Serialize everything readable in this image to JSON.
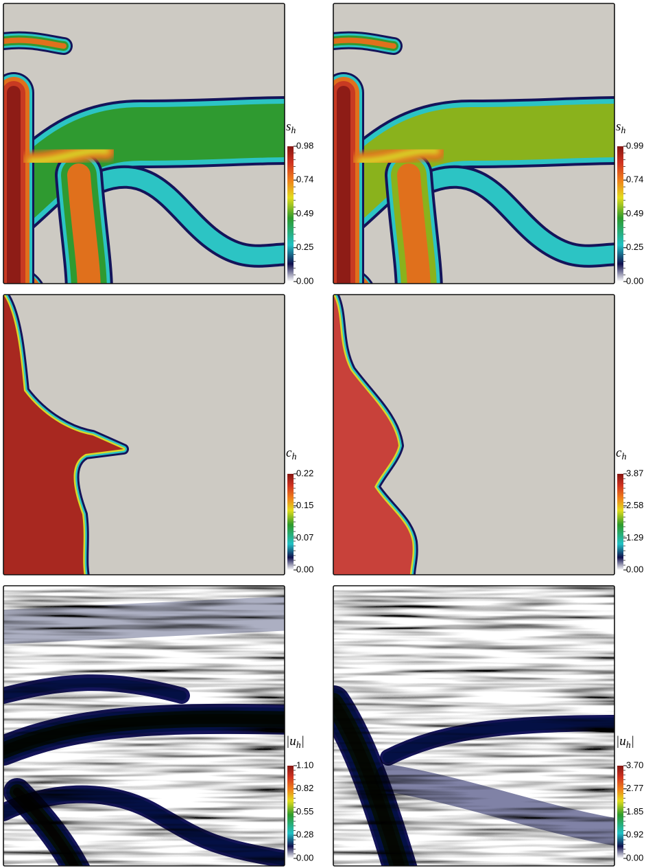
{
  "panels": [
    {
      "label": {
        "main": "s",
        "sub": "h"
      },
      "ticks": [
        "0.98",
        "0.74",
        "0.49",
        "0.25",
        "0.00"
      ]
    },
    {
      "label": {
        "main": "s",
        "sub": "h"
      },
      "ticks": [
        "0.99",
        "0.74",
        "0.49",
        "0.25",
        "0.00"
      ]
    },
    {
      "label": {
        "main": "c",
        "sub": "h"
      },
      "ticks": [
        "0.22",
        "0.15",
        "0.07",
        "0.00"
      ]
    },
    {
      "label": {
        "main": "c",
        "sub": "h"
      },
      "ticks": [
        "3.87",
        "2.58",
        "1.29",
        "0.00"
      ]
    },
    {
      "label": {
        "prefix": "|",
        "main": "u",
        "sub": "h",
        "suffix": "|"
      },
      "ticks": [
        "1.10",
        "0.82",
        "0.55",
        "0.28",
        "0.00"
      ]
    },
    {
      "label": {
        "prefix": "|",
        "main": "u",
        "sub": "h",
        "suffix": "|"
      },
      "ticks": [
        "3.70",
        "2.77",
        "1.85",
        "0.92",
        "0.00"
      ]
    }
  ]
}
